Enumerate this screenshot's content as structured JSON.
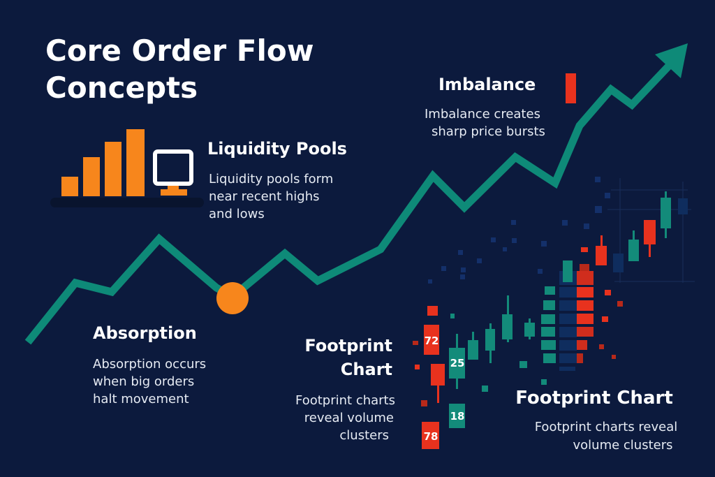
{
  "title": {
    "line1": "Core Order Flow",
    "line2": "Concepts"
  },
  "sections": {
    "liquidity": {
      "heading": "Liquidity Pools",
      "body": [
        "Liquidity pools form",
        "near recent highs",
        "and lows"
      ]
    },
    "imbalance": {
      "heading": "Imbalance",
      "body": [
        "Imbalance creates",
        "sharp price bursts"
      ]
    },
    "absorption": {
      "heading": "Absorption",
      "body": [
        "Absorption occurs",
        "when big orders",
        "halt movement"
      ]
    },
    "footprint_left": {
      "heading": [
        "Footprint",
        "Chart"
      ],
      "body": [
        "Footprint charts",
        "reveal volume",
        "clusters"
      ]
    },
    "footprint_right": {
      "heading": "Footprint Chart",
      "body": [
        "Footprint charts reveal",
        "volume clusters"
      ]
    }
  },
  "footprint_numbers": [
    "72",
    "25",
    "18",
    "78"
  ],
  "colors": {
    "background": "#0c1a3d",
    "trend_line": "#0e8a78",
    "orange": "#f7861c",
    "red": "#e8321e",
    "teal": "#138b7a",
    "navy": "#0f2d5e"
  },
  "icons": [
    "bar-chart-icon",
    "monitor-icon",
    "trend-arrow-icon",
    "candlestick-icon"
  ]
}
